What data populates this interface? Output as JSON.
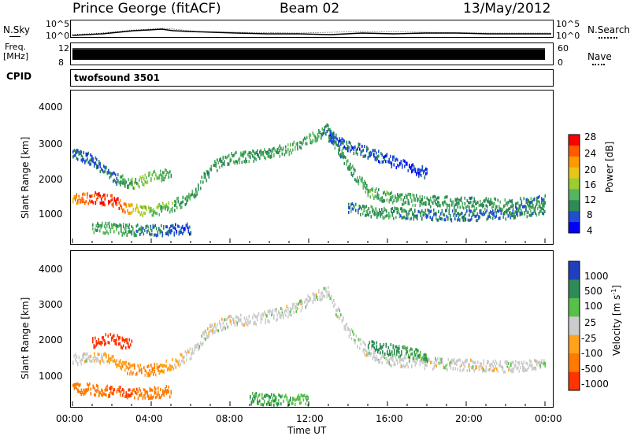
{
  "header": {
    "title": "Prince George (fitACF)",
    "beam": "Beam 02",
    "date": "13/May/2012"
  },
  "summary": {
    "left_labels": {
      "nsky": "N.Sky",
      "freq": "Freq.",
      "freq_unit": "[MHz]",
      "cpid": "CPID"
    },
    "right_labels": {
      "nsearch": "N.Search",
      "nave": "Nave"
    },
    "nsky_ticks": [
      "10^5",
      "10^0"
    ],
    "freq_ticks": [
      "12",
      "8"
    ],
    "nsearch_ticks": [
      "10^5",
      "10^0"
    ],
    "nave_ticks": [
      "60",
      "0"
    ],
    "cpid_text": "twofsound 3501"
  },
  "axes": {
    "x_label": "Time UT",
    "x_ticks": [
      "00:00",
      "04:00",
      "08:00",
      "12:00",
      "16:00",
      "20:00",
      "00:00"
    ],
    "y_label": "Slant Range [km]",
    "y_ticks": [
      "4000",
      "3000",
      "2000",
      "1000"
    ]
  },
  "colorbars": {
    "power": {
      "label": "Power [dB]",
      "ticks": [
        "28",
        "24",
        "20",
        "16",
        "12",
        "8",
        "4"
      ],
      "colors": [
        "#0000ff",
        "#1f4fd0",
        "#2e8b57",
        "#55b560",
        "#9acd32",
        "#e6c619",
        "#ff9900",
        "#ff5a00",
        "#ff0000"
      ]
    },
    "velocity": {
      "label": "Velocity [m s",
      "label_sup": "-1",
      "label_end": "]",
      "ticks": [
        "1000",
        "500",
        "100",
        "25",
        "-25",
        "-100",
        "-500",
        "-1000"
      ],
      "colors": [
        "#1f3fbf",
        "#2e8b57",
        "#56c048",
        "#cccccc",
        "#ffa31a",
        "#ff7a00",
        "#ff3300"
      ]
    }
  },
  "chart_data": [
    {
      "type": "heatmap",
      "name": "power",
      "xlabel": "Time UT",
      "ylabel": "Slant Range [km]",
      "xlim": [
        0,
        24
      ],
      "ylim": [
        180,
        4600
      ],
      "clabel": "Power [dB]",
      "clim": [
        0,
        32
      ],
      "bands": [
        {
          "x": [
            0,
            1,
            2,
            3,
            4,
            5,
            6,
            7,
            8,
            9,
            10,
            11,
            12,
            13
          ],
          "y": [
            1450,
            1500,
            1400,
            1150,
            1100,
            1250,
            1500,
            2350,
            2650,
            2700,
            2800,
            2900,
            3200,
            3500
          ],
          "power": [
            22,
            28,
            30,
            20,
            14,
            12,
            10,
            10,
            10,
            10,
            10,
            12,
            12,
            8
          ]
        },
        {
          "x": [
            0,
            1,
            2,
            3,
            4,
            5
          ],
          "y": [
            2800,
            2600,
            2100,
            1900,
            2100,
            2200
          ],
          "power": [
            6,
            6,
            8,
            12,
            16,
            10
          ]
        },
        {
          "x": [
            1,
            2,
            3,
            4,
            5,
            6
          ],
          "y": [
            650,
            600,
            550,
            550,
            550,
            600
          ],
          "power": [
            10,
            12,
            10,
            8,
            6,
            6
          ]
        },
        {
          "x": [
            13,
            14,
            15,
            16,
            18,
            20,
            22,
            24
          ],
          "y": [
            3400,
            2400,
            1700,
            1500,
            1400,
            1350,
            1300,
            1400
          ],
          "power": [
            8,
            10,
            12,
            12,
            10,
            10,
            10,
            8
          ]
        },
        {
          "x": [
            13,
            14,
            15,
            16,
            17,
            18
          ],
          "y": [
            3300,
            3000,
            2800,
            2600,
            2400,
            2200
          ],
          "power": [
            6,
            6,
            6,
            5,
            5,
            4
          ]
        },
        {
          "x": [
            14,
            15,
            16,
            18,
            20,
            22,
            24
          ],
          "y": [
            1200,
            1100,
            1050,
            1000,
            980,
            1000,
            1200
          ],
          "power": [
            8,
            10,
            10,
            8,
            8,
            8,
            10
          ]
        }
      ]
    },
    {
      "type": "heatmap",
      "name": "velocity",
      "xlabel": "Time UT",
      "ylabel": "Slant Range [km]",
      "xlim": [
        0,
        24
      ],
      "ylim": [
        180,
        4600
      ],
      "clabel": "Velocity [m s-1]",
      "clim": [
        -1000,
        1000
      ],
      "bands": [
        {
          "x": [
            0,
            1,
            2,
            3,
            4,
            5,
            6,
            7,
            8,
            9,
            10,
            11,
            12,
            13
          ],
          "y": [
            1500,
            1600,
            1500,
            1200,
            1200,
            1350,
            1700,
            2400,
            2600,
            2650,
            2750,
            2900,
            3200,
            3500
          ],
          "velocity": [
            0,
            0,
            -50,
            -100,
            -100,
            -50,
            0,
            0,
            0,
            0,
            0,
            0,
            0,
            0
          ]
        },
        {
          "x": [
            0,
            1,
            2,
            3,
            4,
            5
          ],
          "y": [
            700,
            650,
            600,
            550,
            550,
            600
          ],
          "velocity": [
            -300,
            -400,
            -500,
            -500,
            -400,
            -300
          ]
        },
        {
          "x": [
            1,
            2,
            3
          ],
          "y": [
            2000,
            2100,
            1900
          ],
          "velocity": [
            -800,
            -900,
            -700
          ]
        },
        {
          "x": [
            9,
            10,
            11,
            12
          ],
          "y": [
            400,
            350,
            350,
            350
          ],
          "velocity": [
            100,
            100,
            80,
            80
          ]
        },
        {
          "x": [
            13,
            14,
            15,
            16,
            18,
            20,
            22,
            24
          ],
          "y": [
            3300,
            2300,
            1700,
            1500,
            1400,
            1350,
            1300,
            1400
          ],
          "velocity": [
            0,
            0,
            0,
            0,
            0,
            0,
            0,
            0
          ]
        },
        {
          "x": [
            15,
            16,
            17,
            18
          ],
          "y": [
            1900,
            1800,
            1700,
            1600
          ],
          "velocity": [
            200,
            150,
            100,
            100
          ]
        }
      ]
    }
  ]
}
